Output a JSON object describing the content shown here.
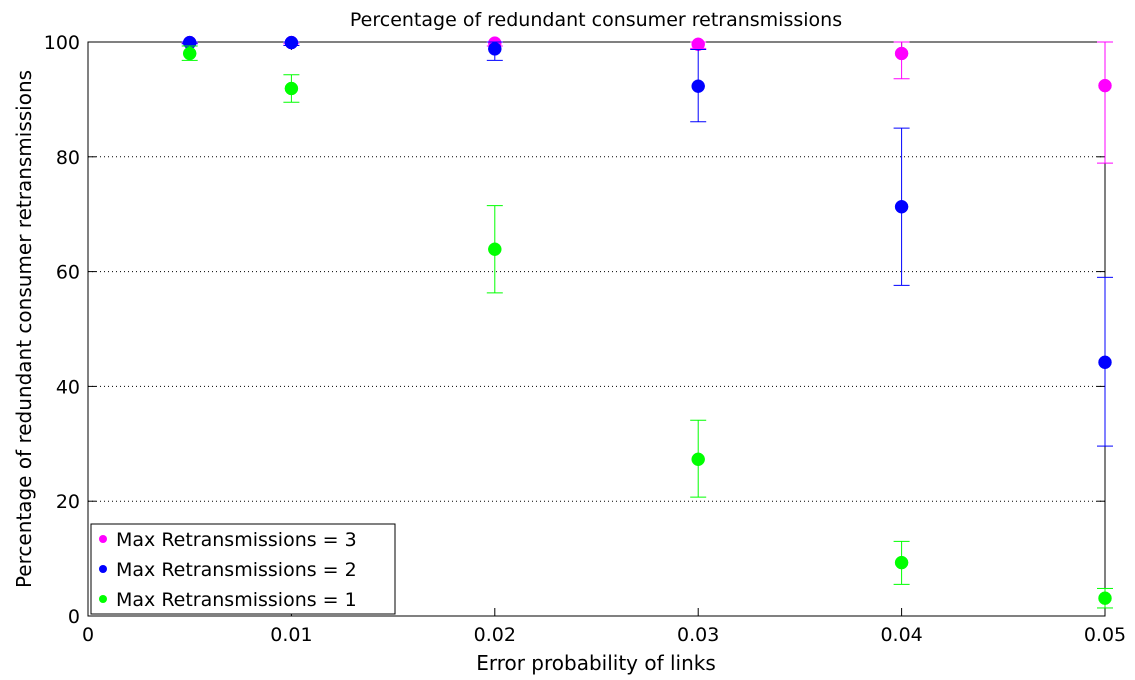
{
  "chart_data": {
    "type": "scatter",
    "title": "Percentage of redundant consumer retransmissions",
    "xlabel": "Error probability of links",
    "ylabel": "Percentage of redundant consumer retransmissions",
    "xlim": [
      0,
      0.05
    ],
    "ylim": [
      0,
      100
    ],
    "x_ticks": [
      "0",
      "0.01",
      "0.02",
      "0.03",
      "0.04",
      "0.05"
    ],
    "y_ticks": [
      "0",
      "20",
      "40",
      "60",
      "80",
      "100"
    ],
    "grid": "y-dotted",
    "legend_position": "bottom-left",
    "series": [
      {
        "name": "Max Retransmissions = 3",
        "color": "#ff00ff",
        "x": [
          0.005,
          0.01,
          0.02,
          0.03,
          0.04,
          0.05
        ],
        "y": [
          99.9,
          99.9,
          99.8,
          99.6,
          98.0,
          92.4
        ],
        "err_low": [
          99.8,
          99.7,
          99.3,
          98.9,
          93.6,
          78.9
        ],
        "err_high": [
          100,
          100,
          100,
          100,
          100,
          100
        ]
      },
      {
        "name": "Max Retransmissions = 2",
        "color": "#0000ff",
        "x": [
          0.005,
          0.01,
          0.02,
          0.03,
          0.04,
          0.05
        ],
        "y": [
          99.9,
          99.9,
          98.8,
          92.3,
          71.3,
          44.2
        ],
        "err_low": [
          99.7,
          99.4,
          96.8,
          86.1,
          57.6,
          29.6
        ],
        "err_high": [
          100,
          100,
          100,
          98.7,
          85.0,
          59.0
        ]
      },
      {
        "name": "Max Retransmissions = 1",
        "color": "#00ff00",
        "x": [
          0.005,
          0.01,
          0.02,
          0.03,
          0.04,
          0.05
        ],
        "y": [
          98.0,
          91.9,
          63.9,
          27.3,
          9.3,
          3.1
        ],
        "err_low": [
          96.8,
          89.5,
          56.3,
          20.7,
          5.5,
          1.4
        ],
        "err_high": [
          99.3,
          94.3,
          71.5,
          34.1,
          13.0,
          4.8
        ]
      }
    ]
  }
}
